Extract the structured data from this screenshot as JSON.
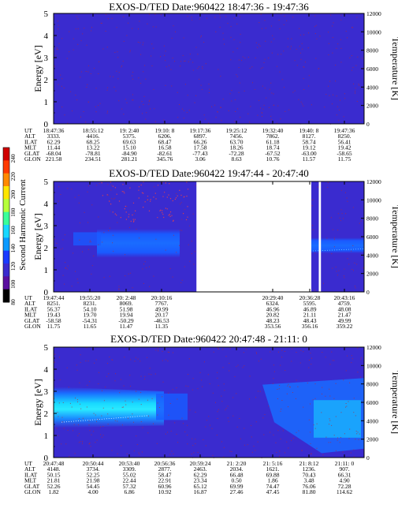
{
  "colors": {
    "background": "#3a2bcf",
    "band_light": "#1a6cff",
    "band_cyan": "#18d8ff",
    "noise": "#b22a3a",
    "gap": "#ffffff"
  },
  "colorbar": {
    "label": "Second Harmonic Current",
    "ticks": [
      "240",
      "220",
      "200",
      "180",
      "160",
      "140",
      "120",
      "100",
      "80"
    ],
    "colors": [
      "#d00000",
      "#ff3a00",
      "#ff8a00",
      "#ffe600",
      "#b6ff3a",
      "#3aff9a",
      "#18d8ff",
      "#0a9aff",
      "#1a3aff",
      "#3a2bcf",
      "#5a0fa0",
      "#000000"
    ]
  },
  "chart_data": [
    {
      "type": "heatmap",
      "title": "EXOS-D/TED   Date:960422   18:47:36 - 19:47:36",
      "ylabel": "Energy [eV]",
      "y2label": "Temperature [K]",
      "ylim": [
        0,
        5
      ],
      "y2lim": [
        0,
        12000
      ],
      "yticks": [
        "0",
        "1",
        "2",
        "3",
        "4",
        "5"
      ],
      "y2ticks": [
        "0",
        "2000",
        "4000",
        "6000",
        "8000",
        "10000",
        "12000"
      ],
      "band": "none",
      "gaps": [],
      "ephemeris": {
        "labels": [
          "UT",
          "ALT",
          "ILAT",
          "MLT",
          "GLAT",
          "GLON"
        ],
        "columns": [
          [
            "18:47:36",
            "3333.",
            "62.29",
            "11.44",
            "-68.04",
            "221.58"
          ],
          [
            "18:55:12",
            "4416.",
            "68.25",
            "13.22",
            "-78.81",
            "234.51"
          ],
          [
            "19: 2:40",
            "5375.",
            "69.63",
            "15.10",
            "-84.90",
            "281.21"
          ],
          [
            "19:10: 8",
            "6206.",
            "68.47",
            "16.58",
            "-82.61",
            "345.76"
          ],
          [
            "19:17:36",
            "6897.",
            "66.26",
            "17.58",
            "-77.43",
            "3.06"
          ],
          [
            "19:25:12",
            "7456.",
            "63.70",
            "18.26",
            "-72.28",
            "8.63"
          ],
          [
            "19:32:40",
            "7862.",
            "61.18",
            "18.74",
            "-67.52",
            "10.76"
          ],
          [
            "19:40: 8",
            "8127.",
            "58.74",
            "19.12",
            "-63.00",
            "11.57"
          ],
          [
            "19:47:36",
            "8250.",
            "56.41",
            "19.42",
            "-58.65",
            "11.75"
          ]
        ]
      }
    },
    {
      "type": "heatmap",
      "title": "EXOS-D/TED   Date:960422   19:47:44 - 20:47:40",
      "ylabel": "Energy [eV]",
      "y2label": "Temperature [K]",
      "ylim": [
        0,
        5
      ],
      "y2lim": [
        0,
        12000
      ],
      "yticks": [
        "0",
        "1",
        "2",
        "3",
        "4",
        "5"
      ],
      "y2ticks": [
        "0",
        "2000",
        "4000",
        "6000",
        "8000",
        "10000",
        "12000"
      ],
      "band": "panel2",
      "gaps": [
        [
          0.46,
          0.83
        ],
        [
          0.854,
          0.861
        ]
      ],
      "ephemeris": {
        "labels": [
          "UT",
          "ALT",
          "ILAT",
          "MLT",
          "GLAT",
          "GLON"
        ],
        "columns": [
          [
            "19:47:44",
            "8251.",
            "56.37",
            "19.43",
            "-58.58",
            "11.75"
          ],
          [
            "19:55:20",
            "8231.",
            "54.10",
            "19.70",
            "-54.31",
            "11.65"
          ],
          [
            "20: 2:48",
            "8069.",
            "51.98",
            "19.94",
            "-50.29",
            "11.47"
          ],
          [
            "20:10:16",
            "7767.",
            "49.99",
            "20.17",
            "-46.53",
            "11.35"
          ],
          [
            "20:29:40",
            "6324.",
            "46.96",
            "20.82",
            "48.23",
            "353.56"
          ],
          [
            "20:36:28",
            "5595.",
            "46.89",
            "21.11",
            "48.43",
            "356.16"
          ],
          [
            "20:43:16",
            "4759.",
            "48.08",
            "21.47",
            "49.99",
            "359.22"
          ]
        ]
      }
    },
    {
      "type": "heatmap",
      "title": "EXOS-D/TED   Date:960422   20:47:48 - 21:11: 0",
      "ylabel": "Energy [eV]",
      "y2label": "Temperature [K]",
      "ylim": [
        0,
        5
      ],
      "y2lim": [
        0,
        12000
      ],
      "yticks": [
        "0",
        "1",
        "2",
        "3",
        "4",
        "5"
      ],
      "y2ticks": [
        "0",
        "2000",
        "4000",
        "6000",
        "8000",
        "10000",
        "12000"
      ],
      "band": "panel3",
      "gaps": [],
      "ephemeris": {
        "labels": [
          "UT",
          "ALT",
          "ILAT",
          "MLT",
          "GLAT",
          "GLON"
        ],
        "columns": [
          [
            "20:47:48",
            "4148.",
            "50.15",
            "21.81",
            "52.26",
            "1.82"
          ],
          [
            "20:50:44",
            "3734.",
            "52.25",
            "21.98",
            "54.45",
            "4.00"
          ],
          [
            "20:53:40",
            "3309.",
            "55.02",
            "22.44",
            "57.32",
            "6.86"
          ],
          [
            "20:56:36",
            "2877.",
            "58.47",
            "22.91",
            "60.96",
            "10.92"
          ],
          [
            "20:59:24",
            "2463.",
            "62.29",
            "23.34",
            "65.12",
            "16.87"
          ],
          [
            "21: 2:20",
            "2034.",
            "66.48",
            "0.50",
            "69.99",
            "27.46"
          ],
          [
            "21: 5:16",
            "1621.",
            "69.88",
            "1.86",
            "74.47",
            "47.45"
          ],
          [
            "21: 8:12",
            "1236.",
            "70.43",
            "3.48",
            "76.06",
            "81.80"
          ],
          [
            "21:11: 0",
            "907.",
            "66.31",
            "4.90",
            "72.28",
            "114.62"
          ]
        ]
      }
    }
  ]
}
